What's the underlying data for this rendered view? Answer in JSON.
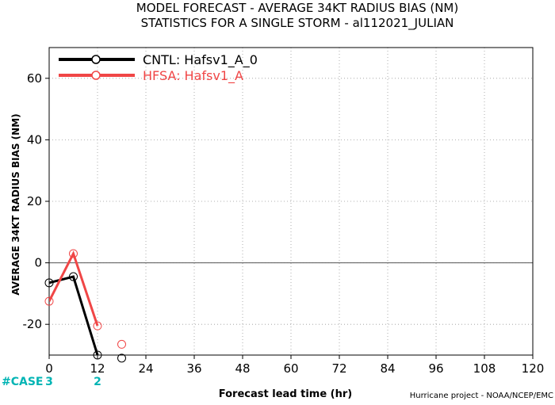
{
  "chart_data": {
    "type": "line",
    "title": "MODEL FORECAST - AVERAGE 34KT RADIUS BIAS (NM)",
    "subtitle": "STATISTICS FOR A SINGLE STORM - al112021_JULIAN",
    "xlabel": "Forecast lead time (hr)",
    "ylabel": "AVERAGE 34KT RADIUS BIAS (NM)",
    "xlim": [
      0,
      120
    ],
    "ylim": [
      -30,
      70
    ],
    "xticks": [
      0,
      12,
      24,
      36,
      48,
      60,
      72,
      84,
      96,
      108,
      120
    ],
    "yticks": [
      -20,
      0,
      20,
      40,
      60
    ],
    "zero_line": true,
    "grid": true,
    "legend_position": "top-left",
    "series": [
      {
        "name": "CNTL: Hafsv1_A_0",
        "color": "#000000",
        "x": [
          0,
          6,
          12,
          18
        ],
        "values": [
          -6.5,
          -4.5,
          -30,
          -31
        ]
      },
      {
        "name": "HFSA: Hafsv1_A",
        "color": "#f04646",
        "x": [
          0,
          6,
          12,
          18
        ],
        "values": [
          -12.5,
          3,
          -20.5,
          -26.5
        ]
      }
    ],
    "cases": {
      "label": "#CASE",
      "color": "#00b4b4",
      "entries": [
        {
          "x": 0,
          "text": "3"
        },
        {
          "x": 12,
          "text": "2"
        }
      ]
    },
    "credit": "Hurricane project - NOAA/NCEP/EMC"
  }
}
